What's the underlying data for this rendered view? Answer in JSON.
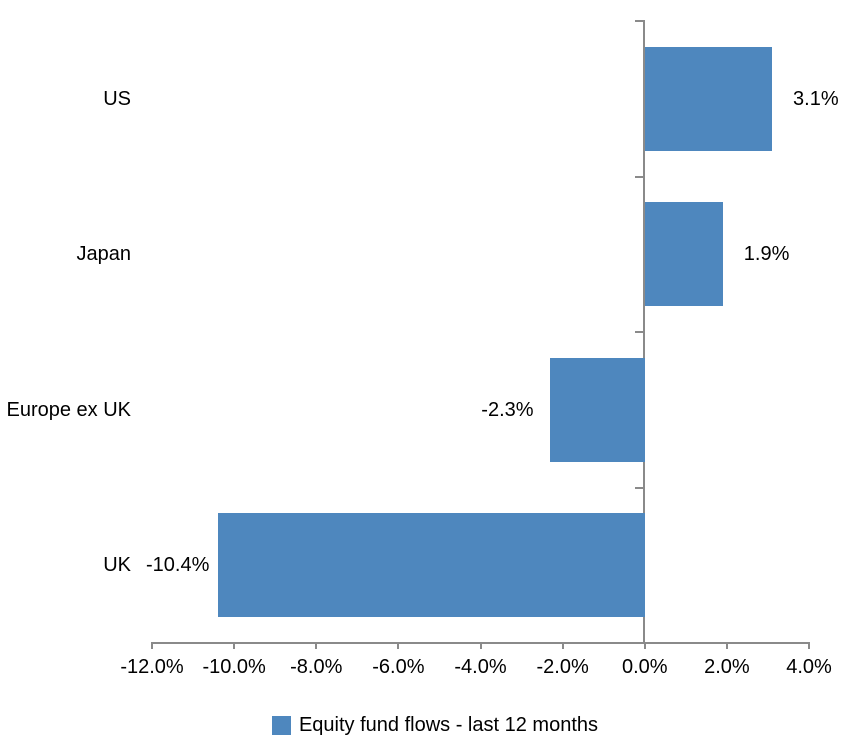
{
  "chart_data": {
    "type": "bar",
    "orientation": "horizontal",
    "title": "",
    "categories": [
      "US",
      "Japan",
      "Europe ex UK",
      "UK"
    ],
    "values": [
      3.1,
      1.9,
      -2.3,
      -10.4
    ],
    "value_labels": [
      "3.1%",
      "1.9%",
      "-2.3%",
      "-10.4%"
    ],
    "series_name": "Equity fund flows - last 12 months",
    "xlabel": "",
    "ylabel": "",
    "xlim": [
      -12,
      4
    ],
    "x_tick_step": 2,
    "x_tick_labels": [
      "-12.0%",
      "-10.0%",
      "-8.0%",
      "-6.0%",
      "-4.0%",
      "-2.0%",
      "0.0%",
      "2.0%",
      "4.0%"
    ],
    "grid": false,
    "legend_position": "bottom",
    "colors": {
      "bar": "#4E87BE",
      "axis": "#8A8A8A",
      "text": "#000000",
      "background": "#FFFFFF"
    }
  },
  "legend": {
    "label": "Equity fund flows - last 12 months"
  }
}
